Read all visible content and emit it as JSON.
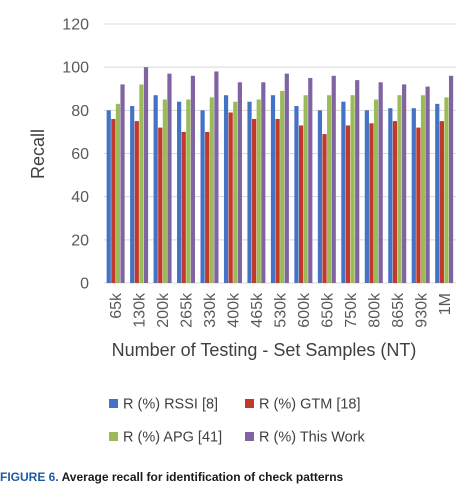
{
  "chart_data": {
    "type": "bar",
    "title": "",
    "xlabel": "Number of Testing - Set Samples (NT)",
    "ylabel": "Recall",
    "ylim": [
      0,
      120
    ],
    "yticks": [
      0,
      20,
      40,
      60,
      80,
      100,
      120
    ],
    "grid": true,
    "legend_position": "bottom",
    "categories": [
      "65k",
      "130k",
      "200k",
      "265k",
      "330k",
      "400k",
      "465k",
      "530k",
      "600k",
      "650k",
      "750k",
      "800k",
      "865k",
      "930k",
      "1M"
    ],
    "series": [
      {
        "name": "R (%) RSSI [8]",
        "color": "#4472c4",
        "values": [
          80,
          82,
          87,
          84,
          80,
          87,
          84,
          87,
          82,
          80,
          84,
          80,
          81,
          81,
          83
        ]
      },
      {
        "name": "R (%) GTM [18]",
        "color": "#c0392b",
        "values": [
          76,
          75,
          72,
          70,
          70,
          79,
          76,
          76,
          73,
          69,
          73,
          74,
          75,
          72,
          75
        ]
      },
      {
        "name": "R (%) APG [41]",
        "color": "#9bbb59",
        "values": [
          83,
          92,
          85,
          85,
          86,
          84,
          85,
          89,
          87,
          87,
          87,
          85,
          87,
          87,
          86
        ]
      },
      {
        "name": "R (%) This Work",
        "color": "#8064a2",
        "values": [
          92,
          100,
          97,
          96,
          98,
          93,
          93,
          97,
          95,
          96,
          94,
          93,
          92,
          91,
          96
        ]
      }
    ]
  },
  "caption": {
    "label": "FIGURE 6.",
    "text": "Average recall for identification of check patterns"
  }
}
